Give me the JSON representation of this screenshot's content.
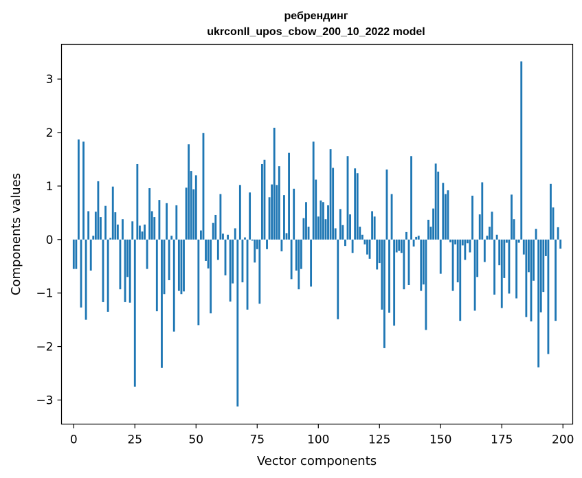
{
  "chart_data": {
    "type": "bar",
    "title_line1": "ребрендинг",
    "title_line2": "ukrconll_upos_cbow_200_10_2022 model",
    "xlabel": "Vector components",
    "ylabel": "Components values",
    "xlim": [
      -5,
      204
    ],
    "ylim": [
      -3.45,
      3.65
    ],
    "xticks": [
      0,
      25,
      50,
      75,
      100,
      125,
      150,
      175,
      200
    ],
    "xtick_labels": [
      "0",
      "25",
      "50",
      "75",
      "100",
      "125",
      "150",
      "175",
      "200"
    ],
    "yticks": [
      -3,
      -2,
      -1,
      0,
      1,
      2,
      3
    ],
    "ytick_labels": [
      "−3",
      "−2",
      "−1",
      "0",
      "1",
      "2",
      "3"
    ],
    "bar_color": "#1f77b4",
    "grid": false,
    "values": [
      -0.55,
      -0.55,
      1.87,
      -1.27,
      1.83,
      -1.5,
      0.53,
      -0.58,
      0.07,
      0.52,
      1.09,
      0.42,
      -1.17,
      0.63,
      -1.35,
      0.03,
      0.99,
      0.51,
      0.28,
      -0.93,
      0.38,
      -1.17,
      -0.7,
      -1.18,
      0.34,
      -2.75,
      1.41,
      0.26,
      0.15,
      0.28,
      -0.55,
      0.96,
      0.53,
      0.42,
      -1.34,
      0.74,
      -2.4,
      -1.02,
      0.68,
      -0.76,
      0.07,
      -1.72,
      0.64,
      -0.96,
      -1.02,
      -0.97,
      0.97,
      1.78,
      1.28,
      0.94,
      1.2,
      -1.6,
      0.17,
      1.99,
      -0.4,
      -0.54,
      -1.38,
      0.31,
      0.46,
      -0.38,
      0.85,
      0.11,
      -0.67,
      0.09,
      -1.16,
      -0.82,
      0.21,
      -3.12,
      1.02,
      -0.8,
      0.04,
      -1.31,
      0.88,
      -0.02,
      -0.43,
      -0.18,
      -1.2,
      1.41,
      1.49,
      -0.18,
      0.79,
      1.03,
      2.09,
      1.02,
      1.37,
      -0.22,
      0.83,
      0.12,
      1.62,
      -0.74,
      0.95,
      -0.58,
      -0.93,
      -0.55,
      0.4,
      0.7,
      0.24,
      -0.88,
      1.83,
      1.12,
      0.43,
      0.73,
      0.7,
      0.38,
      0.64,
      1.69,
      1.34,
      0.21,
      -1.49,
      0.57,
      0.27,
      -0.12,
      1.56,
      0.47,
      -0.25,
      1.33,
      1.24,
      0.24,
      0.09,
      -0.09,
      -0.28,
      -0.36,
      0.53,
      0.43,
      -0.56,
      -0.44,
      -1.31,
      -2.03,
      1.31,
      -1.37,
      0.85,
      -1.61,
      -0.24,
      -0.21,
      -0.25,
      -0.93,
      0.14,
      -0.85,
      1.56,
      -0.13,
      0.05,
      0.07,
      -0.96,
      -0.84,
      -1.69,
      0.37,
      0.24,
      0.58,
      1.42,
      1.27,
      -0.64,
      1.06,
      0.85,
      0.92,
      -0.05,
      -0.96,
      -0.09,
      -0.8,
      -1.52,
      -0.11,
      -0.38,
      -0.07,
      -0.24,
      0.82,
      -1.33,
      -0.7,
      0.47,
      1.07,
      -0.42,
      0.07,
      0.24,
      0.52,
      -1.03,
      0.09,
      -0.48,
      -1.28,
      -0.72,
      -0.06,
      -1.01,
      0.84,
      0.38,
      -1.1,
      -0.06,
      3.33,
      -0.28,
      -1.45,
      -0.61,
      -1.53,
      -0.77,
      0.2,
      -2.39,
      -1.36,
      -0.98,
      -0.31,
      -2.14,
      1.04,
      0.6,
      -1.52,
      0.23,
      -0.17
    ]
  }
}
